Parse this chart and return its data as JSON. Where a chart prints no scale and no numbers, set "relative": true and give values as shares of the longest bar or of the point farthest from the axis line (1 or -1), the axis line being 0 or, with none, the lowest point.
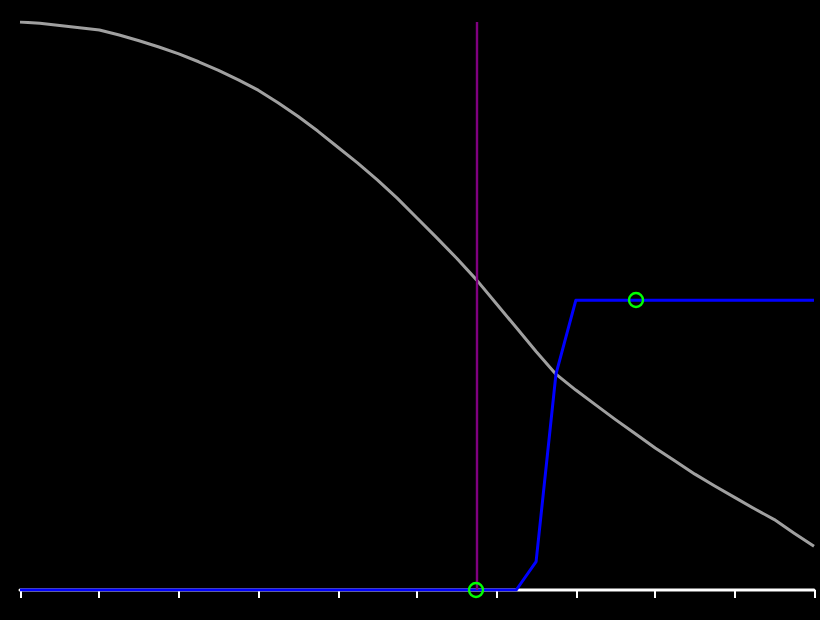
{
  "chart_data": {
    "type": "line",
    "relative": true,
    "marker": "none",
    "categories": [
      null,
      null,
      null,
      null,
      null,
      null,
      null,
      null,
      null,
      null,
      null,
      null,
      null,
      null,
      null,
      null,
      null,
      null,
      null,
      null,
      null,
      null,
      null,
      null,
      null,
      null,
      null,
      null,
      null,
      null,
      null,
      null,
      null,
      null,
      null,
      null,
      null,
      null,
      null,
      null,
      null
    ],
    "series": [
      {
        "color": "#a0a0a0",
        "values": [
          1.0,
          0.998,
          0.994,
          0.99,
          0.986,
          0.977,
          0.967,
          0.956,
          0.944,
          0.93,
          0.915,
          0.898,
          0.88,
          0.858,
          0.834,
          0.808,
          0.78,
          0.752,
          0.722,
          0.69,
          0.655,
          0.62,
          0.584,
          0.546,
          0.504,
          0.462,
          0.42,
          0.38,
          0.352,
          0.326,
          0.3,
          0.275,
          0.25,
          0.227,
          0.204,
          0.183,
          0.163,
          0.143,
          0.124,
          0.1,
          0.077
        ]
      },
      {
        "color": "#0000ff",
        "values": [
          0,
          0,
          0,
          0,
          0,
          0,
          0,
          0,
          0,
          0,
          0,
          0,
          0,
          0,
          0,
          0,
          0,
          0,
          0,
          0,
          0,
          0,
          0,
          0,
          0,
          0,
          0.05,
          0.38,
          0.51,
          0.51,
          0.51,
          0.51,
          0.51,
          0.51,
          0.51,
          0.51,
          0.51,
          0.51,
          0.51,
          0.51,
          0.51
        ]
      }
    ]
  }
}
